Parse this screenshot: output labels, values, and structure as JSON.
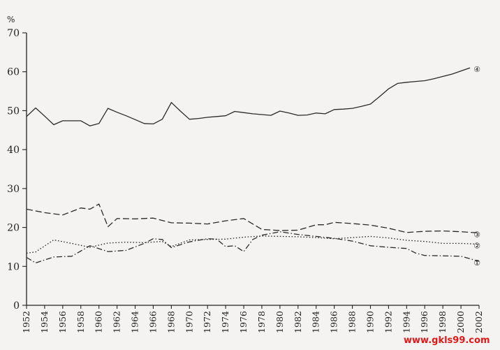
{
  "chart_data": {
    "type": "line",
    "ylabel": "%",
    "ylim": [
      0,
      70
    ],
    "yticks": [
      0,
      10,
      20,
      30,
      40,
      50,
      60,
      70
    ],
    "xlim": [
      1952,
      2002
    ],
    "xticks": [
      1952,
      1954,
      1956,
      1958,
      1960,
      1962,
      1964,
      1966,
      1968,
      1970,
      1972,
      1974,
      1976,
      1978,
      1980,
      1982,
      1984,
      1986,
      1988,
      1990,
      1992,
      1994,
      1996,
      1998,
      2000,
      2002
    ],
    "series": [
      {
        "name": "④",
        "style": "solid",
        "x": [
          1952,
          1953,
          1954,
          1955,
          1956,
          1957,
          1958,
          1959,
          1960,
          1961,
          1962,
          1963,
          1964,
          1965,
          1966,
          1967,
          1968,
          1969,
          1970,
          1971,
          1972,
          1973,
          1974,
          1975,
          1976,
          1977,
          1978,
          1979,
          1980,
          1981,
          1982,
          1983,
          1984,
          1985,
          1986,
          1987,
          1988,
          1989,
          1990,
          1991,
          1992,
          1993,
          1994,
          1995,
          1996,
          1997,
          1998,
          1999,
          2000,
          2001
        ],
        "values": [
          48.5,
          50.7,
          48.6,
          46.4,
          47.4,
          47.4,
          47.4,
          46.1,
          46.7,
          50.6,
          49.6,
          48.7,
          47.7,
          46.7,
          46.6,
          47.8,
          52.1,
          49.9,
          47.8,
          48.0,
          48.3,
          48.5,
          48.7,
          49.8,
          49.5,
          49.2,
          49.0,
          48.8,
          49.9,
          49.4,
          48.8,
          48.9,
          49.4,
          49.2,
          50.3,
          50.4,
          50.6,
          51.1,
          51.7,
          53.6,
          55.6,
          57.0,
          57.3,
          57.5,
          57.7,
          58.2,
          58.8,
          59.4,
          60.2,
          61.0
        ]
      },
      {
        "name": "③",
        "style": "dashed",
        "x": [
          1952,
          1954,
          1956,
          1958,
          1959,
          1960,
          1961,
          1962,
          1964,
          1966,
          1968,
          1970,
          1972,
          1974,
          1976,
          1978,
          1980,
          1982,
          1984,
          1985,
          1986,
          1988,
          1990,
          1992,
          1994,
          1996,
          1998,
          2000,
          2002
        ],
        "values": [
          24.7,
          23.8,
          23.2,
          25.0,
          24.7,
          26.0,
          20.2,
          22.3,
          22.2,
          22.4,
          21.2,
          21.1,
          20.9,
          21.7,
          22.3,
          19.5,
          19.2,
          19.3,
          20.7,
          20.7,
          21.3,
          21.0,
          20.6,
          19.8,
          18.7,
          19.0,
          19.1,
          18.9,
          18.6
        ]
      },
      {
        "name": "②",
        "style": "dotted",
        "x": [
          1952,
          1953,
          1955,
          1957,
          1959,
          1961,
          1963,
          1965,
          1967,
          1968,
          1970,
          1972,
          1974,
          1976,
          1978,
          1980,
          1982,
          1984,
          1986,
          1988,
          1990,
          1992,
          1994,
          1996,
          1998,
          2000,
          2002
        ],
        "values": [
          13.4,
          13.7,
          16.8,
          15.9,
          14.9,
          16.0,
          16.2,
          16.1,
          16.4,
          15.1,
          16.8,
          16.9,
          17.0,
          17.5,
          17.8,
          17.7,
          17.6,
          17.4,
          17.1,
          17.4,
          17.7,
          17.3,
          16.7,
          16.4,
          15.9,
          15.9,
          15.7
        ]
      },
      {
        "name": "①",
        "style": "dashdot",
        "x": [
          1952,
          1953,
          1955,
          1957,
          1959,
          1961,
          1963,
          1965,
          1966,
          1967,
          1968,
          1970,
          1972,
          1973,
          1974,
          1975,
          1976,
          1977,
          1978,
          1980,
          1982,
          1984,
          1986,
          1988,
          1990,
          1992,
          1994,
          1995,
          1996,
          1998,
          2000,
          2002
        ],
        "values": [
          12.3,
          10.9,
          12.4,
          12.6,
          15.3,
          13.8,
          14.1,
          15.9,
          17.1,
          16.9,
          14.8,
          16.3,
          17.1,
          17.0,
          15.1,
          15.3,
          13.8,
          16.9,
          18.0,
          18.9,
          18.2,
          17.7,
          17.2,
          16.5,
          15.3,
          14.9,
          14.6,
          13.4,
          12.8,
          12.7,
          12.6,
          11.3
        ]
      }
    ]
  },
  "watermark_text": "www.gkls99.com"
}
